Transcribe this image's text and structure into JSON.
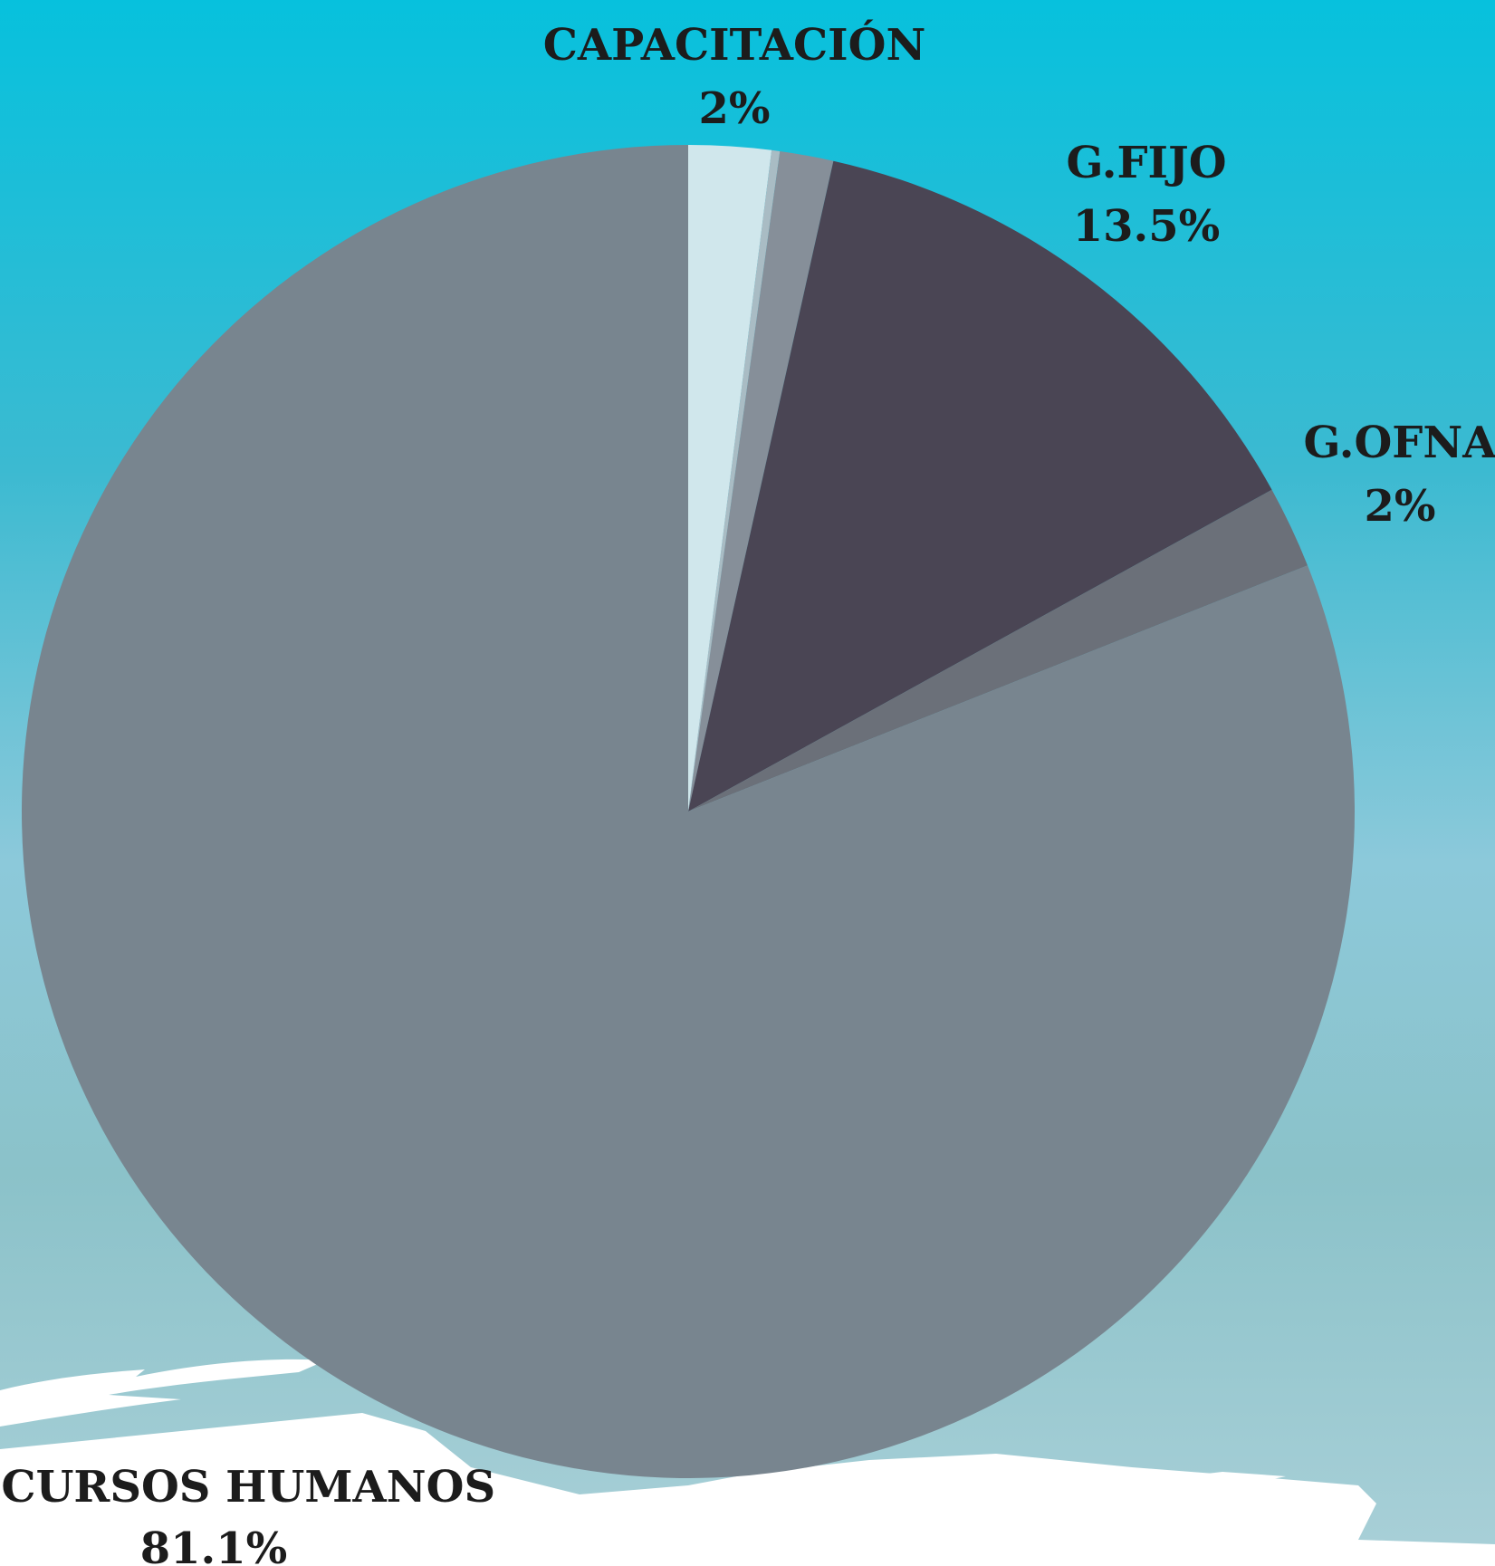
{
  "chart_data": {
    "type": "pie",
    "slices": [
      {
        "label": "CAPACITACIÓN",
        "value_label": "2%",
        "value": 2.0,
        "color": "#d0e7ec"
      },
      {
        "label": "",
        "value_label": "",
        "value": 0.2,
        "color": "#a9bcc4"
      },
      {
        "label": "",
        "value_label": "",
        "value": 1.3,
        "color": "#868f99"
      },
      {
        "label": "G.FIJO",
        "value_label": "13.5%",
        "value": 13.5,
        "color": "#4a4554"
      },
      {
        "label": "G.OFNA",
        "value_label": "2%",
        "value": 2.0,
        "color": "#6b7079"
      },
      {
        "label": "RECURSOS HUMANOS",
        "value_label": "81.1%",
        "value": 81.1,
        "color": "#78858f"
      }
    ]
  },
  "colors": {
    "background_top": "#08c2de",
    "background_bottom": "#a3cdd5",
    "brush_stroke": "#ffffff",
    "label_text": "#1c1c1c"
  }
}
